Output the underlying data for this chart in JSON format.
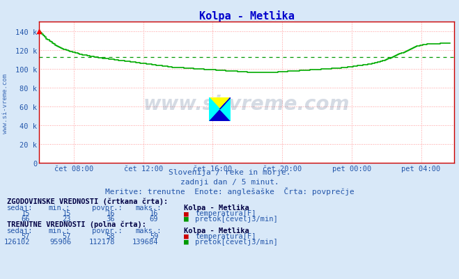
{
  "title": "Kolpa - Metlika",
  "title_color": "#0000cc",
  "bg_color": "#d8e8f8",
  "plot_bg_color": "#ffffff",
  "grid_color": "#ff9999",
  "grid_style": ":",
  "xlim": [
    0,
    287
  ],
  "ylim": [
    0,
    150000
  ],
  "yticks": [
    0,
    20000,
    40000,
    60000,
    80000,
    100000,
    120000,
    140000
  ],
  "ytick_labels": [
    "0",
    "20 k",
    "40 k",
    "60 k",
    "80 k",
    "100 k",
    "120 k",
    "140 k"
  ],
  "xtick_positions": [
    24,
    72,
    120,
    168,
    216,
    264
  ],
  "xtick_labels": [
    "čet 08:00",
    "čet 12:00",
    "čet 16:00",
    "čet 20:00",
    "pet 00:00",
    "pet 04:00"
  ],
  "avg_line_value": 112178,
  "avg_line_color": "#009900",
  "line_color": "#00aa00",
  "line_width": 1.2,
  "axis_color": "#cc0000",
  "text_color": "#2255aa",
  "subtitle1": "Slovenija / reke in morje.",
  "subtitle2": "zadnji dan / 5 minut.",
  "subtitle3": "Meritve: trenutne  Enote: anglešaške  Črta: povprečje",
  "table_text_color": "#2255aa",
  "table_bold_color": "#000044",
  "watermark_text": "www.si-vreme.com",
  "watermark_color": "#1a3a6b",
  "watermark_alpha": 0.18,
  "flow_data": [
    139684,
    138000,
    136500,
    135000,
    133500,
    132000,
    130800,
    129600,
    128400,
    127200,
    126200,
    125300,
    124500,
    123700,
    122900,
    122200,
    121500,
    120800,
    120200,
    119600,
    119100,
    118600,
    118100,
    117700,
    117300,
    116900,
    116500,
    116100,
    115700,
    115300,
    115000,
    114700,
    114400,
    114100,
    113800,
    113500,
    113200,
    112900,
    112600,
    112300,
    112100,
    111900,
    111700,
    111500,
    111300,
    111100,
    110900,
    110700,
    110500,
    110300,
    110100,
    109900,
    109700,
    109500,
    109300,
    109100,
    108900,
    108700,
    108500,
    108300,
    108100,
    107900,
    107700,
    107500,
    107300,
    107100,
    106900,
    106700,
    106500,
    106300,
    106100,
    105900,
    105700,
    105500,
    105300,
    105100,
    104900,
    104700,
    104500,
    104300,
    104100,
    103900,
    103700,
    103500,
    103300,
    103100,
    102900,
    102700,
    102500,
    102300,
    102100,
    101900,
    101700,
    101600,
    101500,
    101400,
    101300,
    101200,
    101100,
    101000,
    100900,
    100800,
    100700,
    100600,
    100500,
    100400,
    100300,
    100200,
    100100,
    100000,
    99900,
    99800,
    99700,
    99600,
    99500,
    99400,
    99300,
    99200,
    99100,
    99000,
    98900,
    98800,
    98700,
    98600,
    98500,
    98400,
    98300,
    98200,
    98100,
    98000,
    97900,
    97800,
    97700,
    97600,
    97500,
    97400,
    97300,
    97200,
    97100,
    97000,
    96900,
    96800,
    96700,
    96600,
    96500,
    96400,
    96300,
    96200,
    96100,
    96000,
    95980,
    95960,
    95940,
    95920,
    95906,
    95920,
    95940,
    95960,
    95980,
    96000,
    96100,
    96200,
    96300,
    96400,
    96500,
    96600,
    96700,
    96800,
    96900,
    97000,
    97100,
    97200,
    97300,
    97400,
    97500,
    97600,
    97700,
    97800,
    97900,
    98000,
    98100,
    98200,
    98300,
    98400,
    98500,
    98600,
    98700,
    98800,
    98900,
    99000,
    99100,
    99200,
    99300,
    99400,
    99500,
    99600,
    99700,
    99800,
    99900,
    100000,
    100100,
    100200,
    100300,
    100400,
    100500,
    100600,
    100700,
    100800,
    100900,
    101000,
    101200,
    101400,
    101600,
    101800,
    102000,
    102200,
    102400,
    102600,
    102800,
    103000,
    103200,
    103400,
    103600,
    103800,
    104000,
    104200,
    104500,
    104800,
    105100,
    105400,
    105700,
    106000,
    106400,
    106800,
    107200,
    107600,
    108000,
    108500,
    109000,
    109500,
    110000,
    110600,
    111200,
    111800,
    112400,
    113000,
    113700,
    114400,
    115100,
    115800,
    116500,
    117200,
    117900,
    118600,
    119300,
    120000,
    120700,
    121400,
    122100,
    122800,
    123500,
    124000,
    124500,
    124900,
    125300,
    125700,
    126000,
    126102,
    126300,
    126400,
    126500,
    126550,
    126600,
    126650,
    126700,
    126750,
    126800,
    126850,
    126900,
    126950,
    127000,
    127050,
    127100,
    127150,
    127200
  ]
}
